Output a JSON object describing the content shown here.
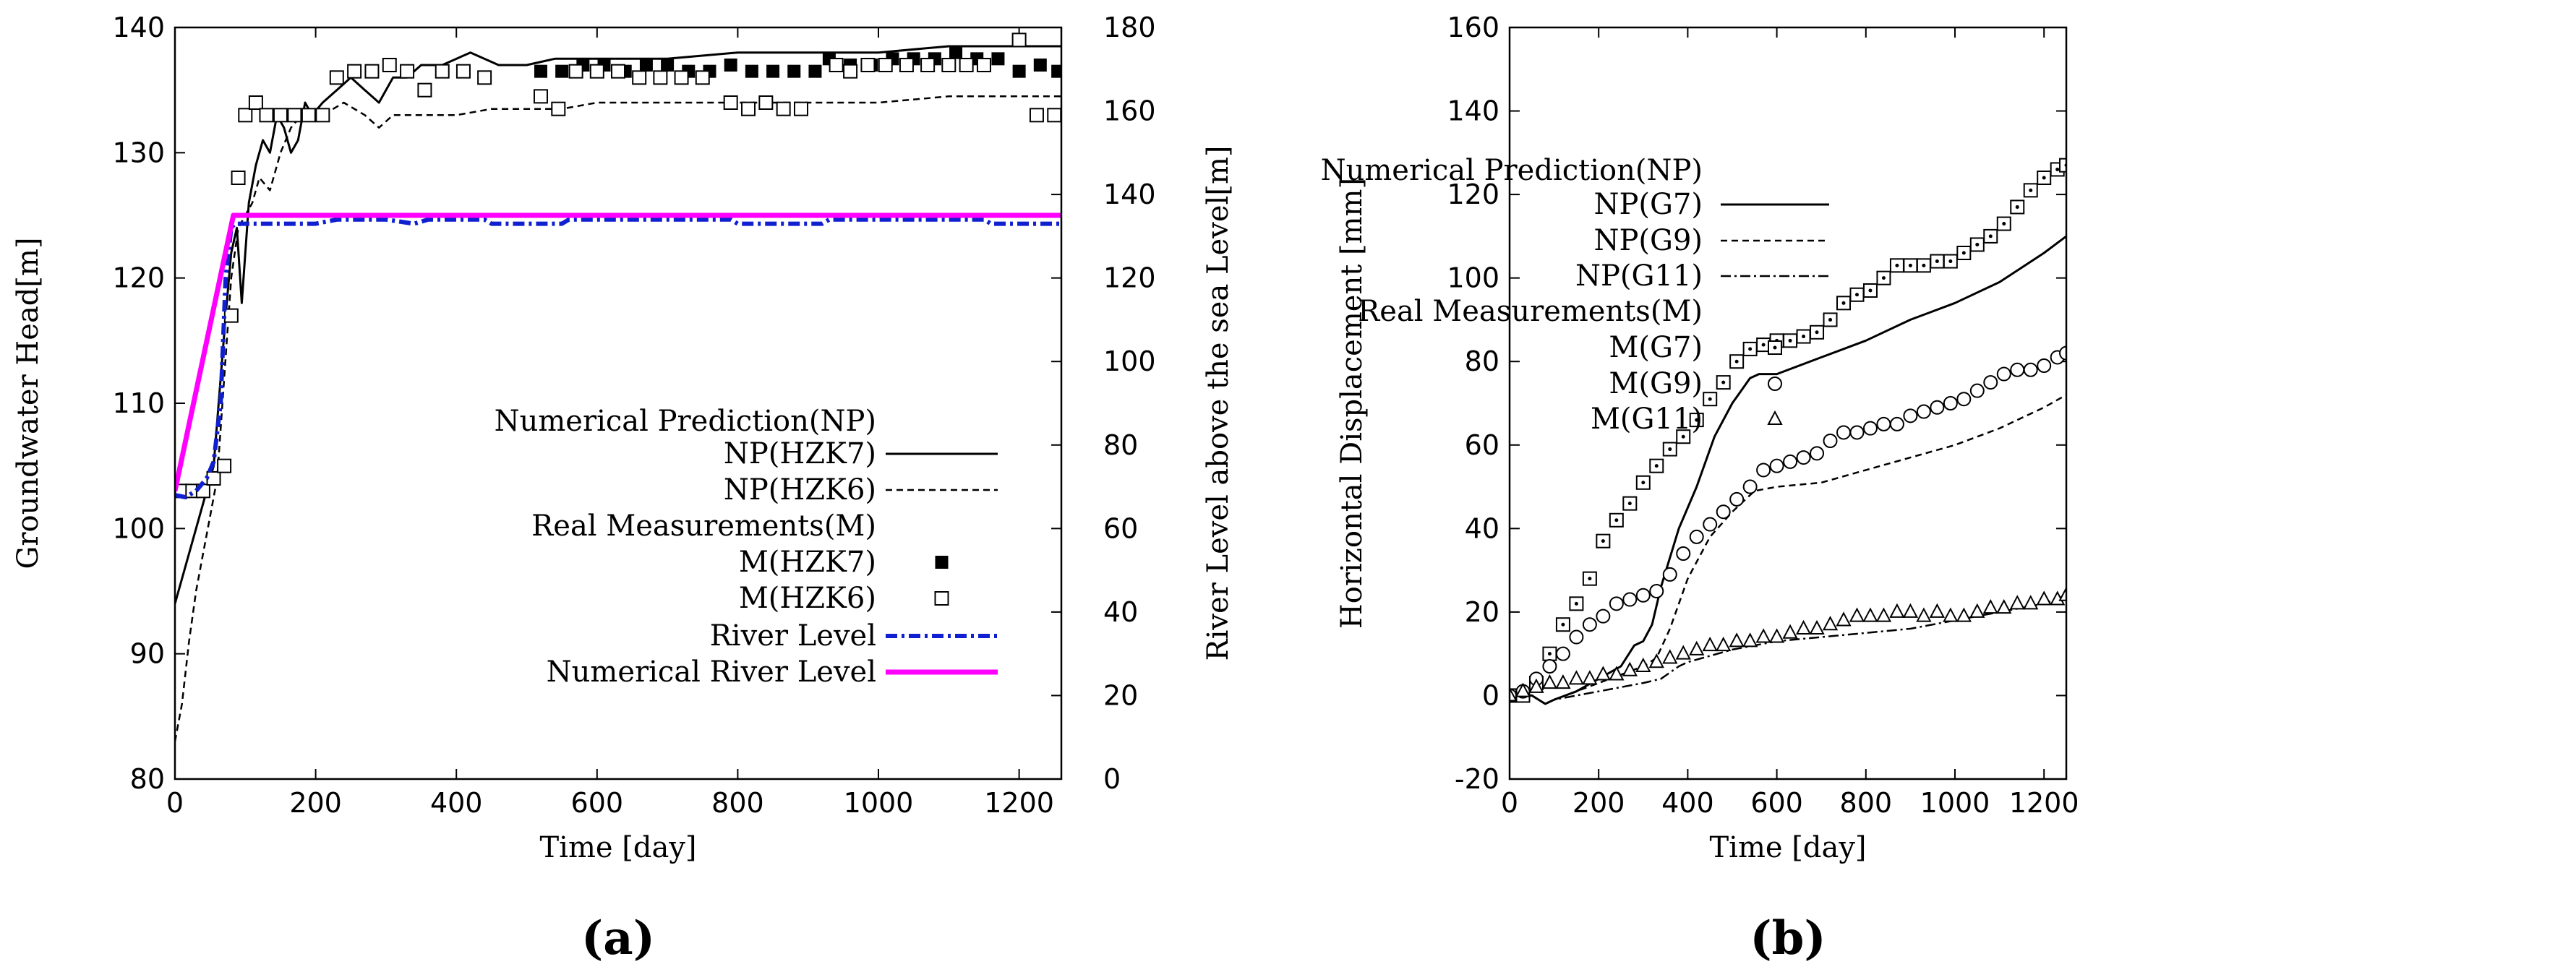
{
  "chart_data": [
    {
      "type": "line",
      "caption": "(a)",
      "xlabel": "Time [day]",
      "ylabel": "Groundwater Head[m]",
      "y2label": "River Level above the sea Level[m]",
      "xlim": [
        0,
        1260
      ],
      "ylim": [
        80,
        140
      ],
      "y2lim": [
        0,
        180
      ],
      "xticks": [
        0,
        200,
        400,
        600,
        800,
        1000,
        1200
      ],
      "yticks": [
        80,
        90,
        100,
        110,
        120,
        130,
        140
      ],
      "y2ticks": [
        0,
        20,
        40,
        60,
        80,
        100,
        120,
        140,
        160,
        180
      ],
      "grid": false,
      "legend_position": "center-right",
      "legend": {
        "np_header": "Numerical Prediction(NP)",
        "np1": "NP(HZK7)",
        "np2": "NP(HZK6)",
        "m_header": "Real Measurements(M)",
        "m1": "M(HZK7)",
        "m2": "M(HZK6)",
        "river": "River Level",
        "num_river": "Numerical River Level"
      },
      "colors": {
        "river": "#1020d0",
        "num_river": "#ff00ff",
        "black": "#000000"
      },
      "series": [
        {
          "name": "NP(HZK7)",
          "style": "solid",
          "x": [
            0,
            15,
            30,
            45,
            55,
            65,
            72,
            80,
            88,
            95,
            105,
            115,
            125,
            135,
            145,
            155,
            165,
            175,
            185,
            195,
            210,
            230,
            250,
            270,
            290,
            310,
            330,
            350,
            380,
            420,
            460,
            500,
            540,
            580,
            620,
            700,
            800,
            900,
            1000,
            1100,
            1200,
            1260
          ],
          "y": [
            94,
            97,
            100,
            103,
            105,
            112,
            117,
            122,
            124,
            118,
            126,
            129,
            131,
            130,
            133,
            132,
            130,
            131,
            134,
            133,
            134,
            135,
            136,
            135,
            134,
            136,
            136,
            137,
            137,
            138,
            137,
            137,
            137.5,
            137.5,
            137.5,
            137.5,
            138,
            138,
            138,
            138.5,
            138.5,
            138.5
          ]
        },
        {
          "name": "NP(HZK6)",
          "style": "dashed",
          "x": [
            0,
            10,
            20,
            30,
            40,
            50,
            60,
            70,
            80,
            90,
            100,
            110,
            120,
            135,
            150,
            165,
            180,
            195,
            210,
            240,
            270,
            290,
            310,
            330,
            360,
            400,
            450,
            500,
            550,
            600,
            700,
            800,
            900,
            1000,
            1100,
            1200,
            1260
          ],
          "y": [
            83,
            86,
            91,
            95,
            98,
            101,
            104,
            112,
            120,
            124,
            125,
            126,
            128,
            127,
            130,
            132,
            133,
            133,
            133,
            134,
            133,
            132,
            133,
            133,
            133,
            133,
            133.5,
            133.5,
            133.5,
            134,
            134,
            134,
            134,
            134,
            134.5,
            134.5,
            134.5
          ]
        },
        {
          "name": "M(HZK7)",
          "style": "filled-square",
          "x": [
            520,
            550,
            580,
            610,
            640,
            670,
            700,
            730,
            760,
            790,
            820,
            850,
            880,
            910,
            930,
            960,
            990,
            1020,
            1050,
            1080,
            1110,
            1140,
            1170,
            1200,
            1230,
            1255
          ],
          "y": [
            136.5,
            136.5,
            137,
            137,
            136.5,
            137,
            137,
            136.5,
            136.5,
            137,
            136.5,
            136.5,
            136.5,
            136.5,
            137.5,
            137,
            137,
            137.5,
            137.5,
            137.5,
            138,
            137.5,
            137.5,
            136.5,
            137,
            136.5
          ]
        },
        {
          "name": "M(HZK6)",
          "style": "open-square",
          "x": [
            10,
            25,
            40,
            55,
            70,
            80,
            90,
            100,
            115,
            130,
            150,
            170,
            190,
            210,
            230,
            255,
            280,
            305,
            330,
            355,
            380,
            410,
            440,
            520,
            545,
            570,
            600,
            630,
            660,
            690,
            720,
            750,
            790,
            815,
            840,
            865,
            890,
            940,
            960,
            985,
            1010,
            1040,
            1070,
            1100,
            1125,
            1150,
            1200,
            1225,
            1250
          ],
          "y": [
            103,
            103,
            103,
            104,
            105,
            117,
            128,
            133,
            134,
            133,
            133,
            133,
            133,
            133,
            136,
            136.5,
            136.5,
            137,
            136.5,
            135,
            136.5,
            136.5,
            136,
            134.5,
            133.5,
            136.5,
            136.5,
            136.5,
            136,
            136,
            136,
            136,
            134,
            133.5,
            134,
            133.5,
            133.5,
            137,
            136.5,
            137,
            137,
            137,
            137,
            137,
            137,
            137,
            139,
            133,
            133
          ]
        },
        {
          "name": "River Level",
          "style": "dash-dot",
          "x": [
            0,
            15,
            30,
            45,
            55,
            65,
            72,
            80,
            85,
            100,
            150,
            200,
            230,
            300,
            340,
            360,
            400,
            440,
            450,
            550,
            560,
            790,
            800,
            920,
            930,
            1150,
            1160,
            1260
          ],
          "y": [
            68,
            67.5,
            69,
            72,
            76,
            90,
            120,
            132,
            133,
            133,
            133,
            133,
            134,
            134,
            133,
            134,
            134,
            134,
            133,
            133,
            134,
            134,
            133,
            133,
            134,
            134,
            133,
            133
          ]
        },
        {
          "name": "Numerical River Level",
          "style": "magenta-solid",
          "x": [
            0,
            83,
            1260
          ],
          "y": [
            69,
            135,
            135
          ]
        }
      ]
    },
    {
      "type": "line",
      "caption": "(b)",
      "xlabel": "Time [day]",
      "ylabel": "Horizontal Displacement [mm]",
      "xlim": [
        0,
        1250
      ],
      "ylim": [
        -20,
        160
      ],
      "xticks": [
        0,
        200,
        400,
        600,
        800,
        1000,
        1200
      ],
      "yticks": [
        -20,
        0,
        20,
        40,
        60,
        80,
        100,
        120,
        140,
        160
      ],
      "grid": false,
      "legend_position": "upper-left",
      "legend": {
        "np_header": "Numerical Prediction(NP)",
        "np1": "NP(G7)",
        "np2": "NP(G9)",
        "np3": "NP(G11)",
        "m_header": "Real Measurements(M)",
        "m1": "M(G7)",
        "m2": "M(G9)",
        "m3": "M(G11)"
      },
      "series": [
        {
          "name": "NP(G7)",
          "style": "solid",
          "x": [
            0,
            50,
            80,
            100,
            150,
            200,
            250,
            280,
            300,
            320,
            340,
            380,
            420,
            460,
            500,
            540,
            560,
            600,
            700,
            800,
            900,
            1000,
            1100,
            1200,
            1250
          ],
          "y": [
            0,
            0,
            -2,
            -1,
            1,
            4,
            7,
            12,
            13,
            17,
            26,
            40,
            50,
            62,
            70,
            76,
            77,
            77,
            81,
            85,
            90,
            94,
            99,
            106,
            110
          ]
        },
        {
          "name": "NP(G9)",
          "style": "dashed",
          "x": [
            0,
            50,
            80,
            100,
            150,
            200,
            250,
            300,
            330,
            360,
            400,
            450,
            500,
            550,
            600,
            700,
            800,
            900,
            1000,
            1100,
            1200,
            1250
          ],
          "y": [
            0,
            0,
            -2,
            -1,
            1,
            3,
            5,
            7,
            9,
            16,
            28,
            38,
            44,
            49,
            50,
            51,
            54,
            57,
            60,
            64,
            69,
            72
          ]
        },
        {
          "name": "NP(G11)",
          "style": "dash-dot",
          "x": [
            0,
            50,
            80,
            100,
            150,
            200,
            250,
            300,
            340,
            380,
            400,
            500,
            600,
            700,
            800,
            900,
            1000,
            1100,
            1200,
            1250
          ],
          "y": [
            0,
            0,
            -2,
            -1,
            0,
            1,
            2,
            3,
            4,
            7,
            8,
            11,
            13,
            14,
            15,
            16,
            18,
            20,
            22,
            24
          ]
        },
        {
          "name": "M(G7)",
          "style": "boxed-dot",
          "x": [
            0,
            30,
            60,
            90,
            120,
            150,
            180,
            210,
            240,
            270,
            300,
            330,
            360,
            390,
            420,
            450,
            480,
            510,
            540,
            570,
            600,
            630,
            660,
            690,
            720,
            750,
            780,
            810,
            840,
            870,
            900,
            930,
            960,
            990,
            1020,
            1050,
            1080,
            1110,
            1140,
            1170,
            1200,
            1230,
            1250
          ],
          "y": [
            0,
            0,
            3,
            10,
            17,
            22,
            28,
            37,
            42,
            46,
            51,
            55,
            59,
            62,
            66,
            71,
            75,
            80,
            83,
            84,
            85,
            85,
            86,
            87,
            90,
            94,
            96,
            97,
            100,
            103,
            103,
            103,
            104,
            104,
            106,
            108,
            110,
            113,
            117,
            121,
            124,
            126,
            127
          ]
        },
        {
          "name": "M(G9)",
          "style": "circle",
          "x": [
            0,
            30,
            60,
            90,
            120,
            150,
            180,
            210,
            240,
            270,
            300,
            330,
            360,
            390,
            420,
            450,
            480,
            510,
            540,
            570,
            600,
            630,
            660,
            690,
            720,
            750,
            780,
            810,
            840,
            870,
            900,
            930,
            960,
            990,
            1020,
            1050,
            1080,
            1110,
            1140,
            1170,
            1200,
            1230,
            1250
          ],
          "y": [
            0,
            1,
            4,
            7,
            10,
            14,
            17,
            19,
            22,
            23,
            24,
            25,
            29,
            34,
            38,
            41,
            44,
            47,
            50,
            54,
            55,
            56,
            57,
            58,
            61,
            63,
            63,
            64,
            65,
            65,
            67,
            68,
            69,
            70,
            71,
            73,
            75,
            77,
            78,
            78,
            79,
            81,
            82
          ]
        },
        {
          "name": "M(G11)",
          "style": "triangle",
          "x": [
            0,
            30,
            60,
            90,
            120,
            150,
            180,
            210,
            240,
            270,
            300,
            330,
            360,
            390,
            420,
            450,
            480,
            510,
            540,
            570,
            600,
            630,
            660,
            690,
            720,
            750,
            780,
            810,
            840,
            870,
            900,
            930,
            960,
            990,
            1020,
            1050,
            1080,
            1110,
            1140,
            1170,
            1200,
            1230,
            1250
          ],
          "y": [
            0,
            1,
            2,
            3,
            3,
            4,
            4,
            5,
            5,
            6,
            7,
            8,
            9,
            10,
            11,
            12,
            12,
            13,
            13,
            14,
            14,
            15,
            16,
            16,
            17,
            18,
            19,
            19,
            19,
            20,
            20,
            19,
            20,
            19,
            19,
            20,
            21,
            21,
            22,
            22,
            23,
            23,
            24
          ]
        }
      ]
    }
  ]
}
